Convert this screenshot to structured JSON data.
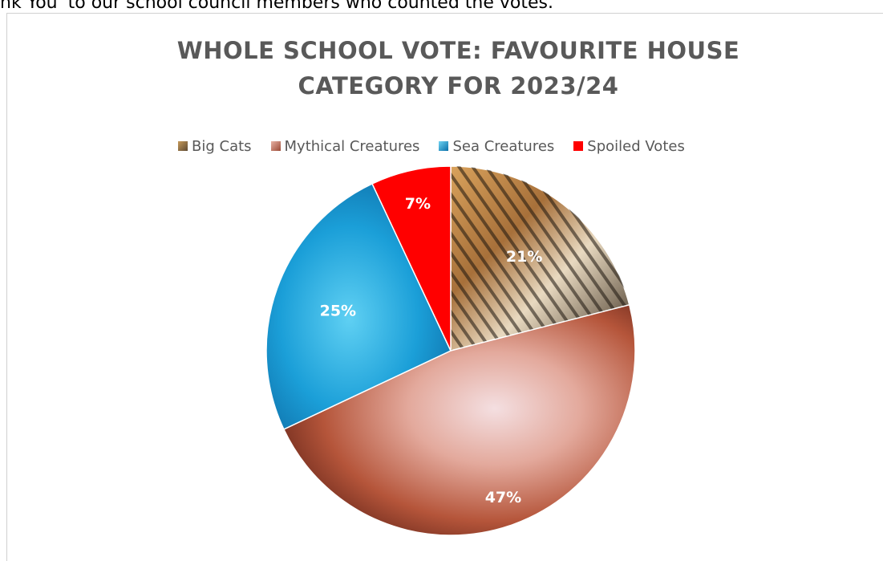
{
  "page": {
    "top_text": "nk You' to our school council members who counted the votes."
  },
  "chart_data": {
    "type": "pie",
    "title_lines": [
      "WHOLE SCHOOL VOTE:  FAVOURITE HOUSE",
      "CATEGORY FOR 2023/24"
    ],
    "categories": [
      "Big Cats",
      "Mythical Creatures",
      "Sea Creatures",
      "Spoiled Votes"
    ],
    "values": [
      21,
      47,
      25,
      7
    ],
    "labels": [
      "21%",
      "47%",
      "25%",
      "7%"
    ],
    "colors": [
      "#8a6b46",
      "#c9826f",
      "#1aa3d9",
      "#ff0000"
    ],
    "legend_position": "top",
    "fill_icons": [
      "tiger-photo",
      "pegasus-photo",
      "turtle-photo",
      "solid-red"
    ]
  }
}
